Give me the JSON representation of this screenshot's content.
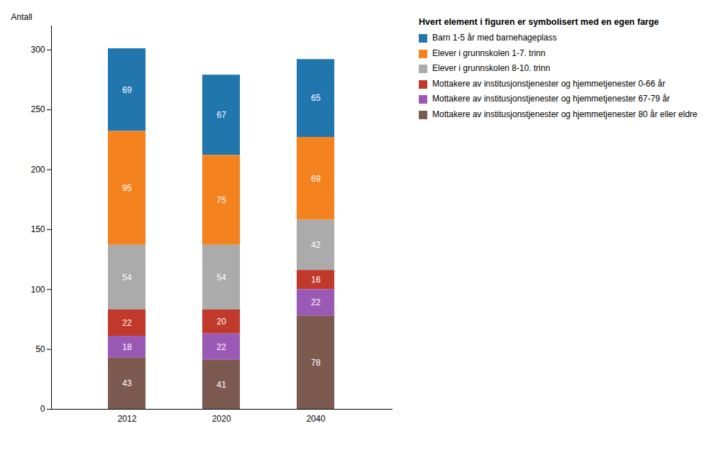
{
  "chart_data": {
    "type": "bar",
    "stacked": true,
    "data_labels": true,
    "grid": false,
    "legend": "right",
    "legend_title": "Hvert element i figuren er symbolisert med en egen farge",
    "ylabel": "Antall",
    "categories": [
      "2012",
      "2020",
      "2040"
    ],
    "series": [
      {
        "name": "Barn 1-5 år med barnehageplass",
        "color": "#2176AE",
        "values": [
          69,
          67,
          65
        ]
      },
      {
        "name": "Elever i grunnskolen 1-7. trinn",
        "color": "#F4821F",
        "values": [
          95,
          75,
          69
        ]
      },
      {
        "name": "Elever i grunnskolen 8-10. trinn",
        "color": "#ABABAB",
        "values": [
          54,
          54,
          42
        ]
      },
      {
        "name": "Mottakere av institusjonstjenester og hjemmetjenester 0-66 år",
        "color": "#C0392B",
        "values": [
          22,
          20,
          16
        ]
      },
      {
        "name": "Mottakere av institusjonstjenester og hjemmetjenester 67-79 år",
        "color": "#9B59B6",
        "values": [
          18,
          22,
          22
        ]
      },
      {
        "name": "Mottakere av institusjonstjenester og hjemmetjenester 80 år eller eldre",
        "color": "#7D5A4F",
        "values": [
          43,
          41,
          78
        ]
      }
    ],
    "ylim": [
      0,
      320
    ],
    "yticks": [
      0,
      50,
      100,
      150,
      200,
      250,
      300
    ]
  }
}
